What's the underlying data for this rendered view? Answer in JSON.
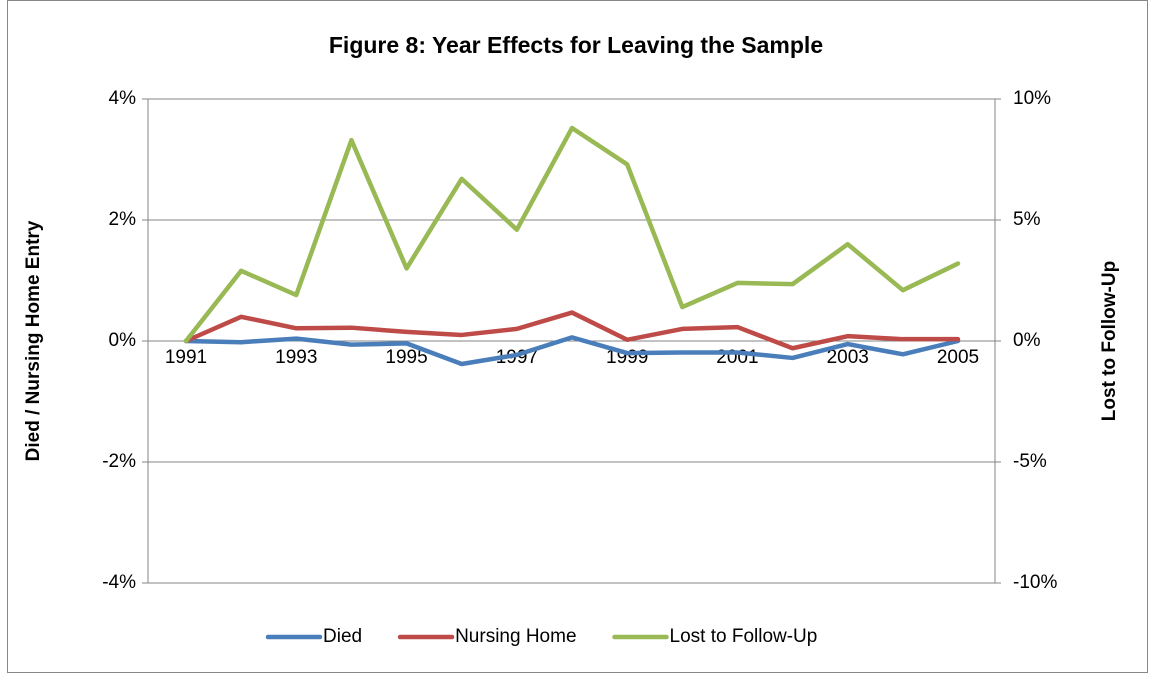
{
  "chart_data": {
    "type": "line",
    "title": "Figure 8: Year Effects for Leaving the Sample",
    "y_label": "Died / Nursing Home Entry",
    "y2_label": "Lost to Follow-Up",
    "categories": [
      "1991",
      null,
      "1993",
      null,
      "1995",
      null,
      "1997",
      null,
      "1999",
      null,
      "2001",
      null,
      "2003",
      null,
      "2005"
    ],
    "ylim": [
      -4,
      4
    ],
    "yticks": [
      {
        "value": -4,
        "label": "-4%"
      },
      {
        "value": -2,
        "label": "-2%"
      },
      {
        "value": 0,
        "label": "0%"
      },
      {
        "value": 2,
        "label": "2%"
      },
      {
        "value": 4,
        "label": "4%"
      }
    ],
    "y2lim": [
      -10,
      10
    ],
    "y2ticks": [
      {
        "value": -10,
        "label": "-10%"
      },
      {
        "value": -5,
        "label": "-5%"
      },
      {
        "value": 0,
        "label": "0%"
      },
      {
        "value": 5,
        "label": "5%"
      },
      {
        "value": 10,
        "label": "10%"
      }
    ],
    "grid": true,
    "legend": "bottom",
    "series": [
      {
        "name": "Died",
        "color": "#4a7ebb",
        "values": [
          0,
          -0.02,
          0.04,
          -0.06,
          -0.04,
          -0.38,
          -0.23,
          0.06,
          -0.2,
          -0.19,
          -0.19,
          -0.28,
          -0.05,
          -0.22,
          0
        ]
      },
      {
        "name": "Nursing Home",
        "color": "#be4b48",
        "values": [
          0,
          0.4,
          0.21,
          0.22,
          0.15,
          0.1,
          0.2,
          0.47,
          0.02,
          0.2,
          0.23,
          -0.12,
          0.08,
          0.03,
          0.03
        ]
      },
      {
        "name": "Lost to Follow-Up",
        "color": "#98b954",
        "axis": "y2",
        "values": [
          0,
          2.9,
          1.9,
          8.3,
          3.0,
          6.7,
          4.6,
          8.8,
          7.3,
          1.4,
          2.4,
          2.35,
          4.0,
          2.1,
          3.2
        ]
      }
    ]
  }
}
